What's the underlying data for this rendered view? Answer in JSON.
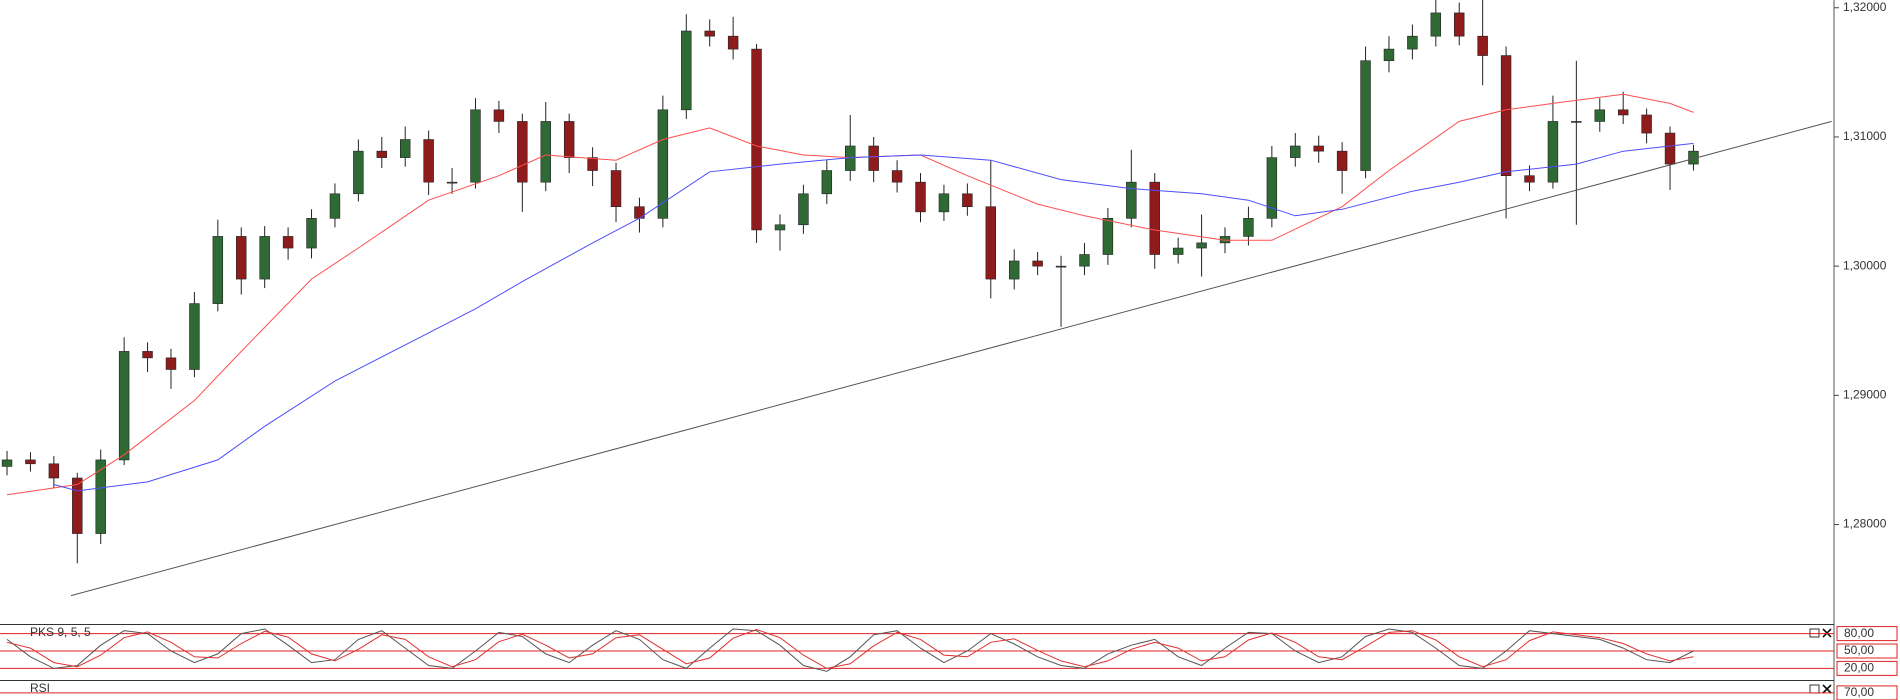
{
  "chart_data": [
    {
      "type": "candlestick",
      "xlim": [
        -0.3,
        78
      ],
      "ylim": [
        1.2723,
        1.3206
      ],
      "yticks": [
        {
          "value": 1.32,
          "label": "1,32000"
        },
        {
          "value": 1.31,
          "label": "1,31000"
        },
        {
          "value": 1.3,
          "label": "1,30000"
        },
        {
          "value": 1.29,
          "label": "1,29000"
        },
        {
          "value": 1.28,
          "label": "1,28000"
        }
      ],
      "up_color": "#2f6a35",
      "down_color": "#8e1c1c",
      "candles": [
        [
          1.2845,
          1.2857,
          1.2838,
          1.285
        ],
        [
          1.285,
          1.2856,
          1.2841,
          1.2847
        ],
        [
          1.2847,
          1.2853,
          1.2828,
          1.2836
        ],
        [
          1.2836,
          1.284,
          1.277,
          1.2793
        ],
        [
          1.2793,
          1.2858,
          1.2785,
          1.285
        ],
        [
          1.285,
          1.2945,
          1.2846,
          1.2934
        ],
        [
          1.2934,
          1.2941,
          1.2918,
          1.2929
        ],
        [
          1.2929,
          1.2936,
          1.2905,
          1.292
        ],
        [
          1.292,
          1.298,
          1.2914,
          1.2971
        ],
        [
          1.2971,
          1.3036,
          1.2965,
          1.3023
        ],
        [
          1.3023,
          1.303,
          1.2978,
          1.299
        ],
        [
          1.299,
          1.3031,
          1.2983,
          1.3023
        ],
        [
          1.3023,
          1.303,
          1.3005,
          1.3014
        ],
        [
          1.3014,
          1.3044,
          1.3006,
          1.3037
        ],
        [
          1.3037,
          1.3064,
          1.303,
          1.3056
        ],
        [
          1.3056,
          1.3098,
          1.305,
          1.3089
        ],
        [
          1.3089,
          1.31,
          1.3076,
          1.3084
        ],
        [
          1.3084,
          1.3108,
          1.3077,
          1.3098
        ],
        [
          1.3098,
          1.3105,
          1.3055,
          1.3065
        ],
        [
          1.3065,
          1.3076,
          1.3056,
          1.3065
        ],
        [
          1.3065,
          1.313,
          1.306,
          1.3121
        ],
        [
          1.3121,
          1.3128,
          1.3103,
          1.3112
        ],
        [
          1.3112,
          1.3118,
          1.3042,
          1.3065
        ],
        [
          1.3065,
          1.3127,
          1.3058,
          1.3112
        ],
        [
          1.3112,
          1.3118,
          1.3072,
          1.3084
        ],
        [
          1.3084,
          1.3092,
          1.3062,
          1.3074
        ],
        [
          1.3074,
          1.308,
          1.3034,
          1.3046
        ],
        [
          1.3046,
          1.3053,
          1.3026,
          1.3037
        ],
        [
          1.3037,
          1.3132,
          1.303,
          1.3121
        ],
        [
          1.3121,
          1.3195,
          1.3114,
          1.3182
        ],
        [
          1.3182,
          1.3191,
          1.317,
          1.3178
        ],
        [
          1.3178,
          1.3193,
          1.316,
          1.3168
        ],
        [
          1.3168,
          1.3172,
          1.3018,
          1.3028
        ],
        [
          1.3028,
          1.304,
          1.3012,
          1.3032
        ],
        [
          1.3032,
          1.3063,
          1.3025,
          1.3056
        ],
        [
          1.3056,
          1.3082,
          1.3048,
          1.3074
        ],
        [
          1.3074,
          1.3117,
          1.3066,
          1.3093
        ],
        [
          1.3093,
          1.31,
          1.3065,
          1.3074
        ],
        [
          1.3074,
          1.3082,
          1.3057,
          1.3065
        ],
        [
          1.3065,
          1.3072,
          1.3034,
          1.3042
        ],
        [
          1.3042,
          1.3063,
          1.3035,
          1.3056
        ],
        [
          1.3056,
          1.3064,
          1.3039,
          1.3046
        ],
        [
          1.3046,
          1.3082,
          1.2975,
          1.299
        ],
        [
          1.299,
          1.3013,
          1.2982,
          1.3004
        ],
        [
          1.3004,
          1.3011,
          1.2993,
          1.3
        ],
        [
          1.3,
          1.3008,
          1.2953,
          1.3
        ],
        [
          1.3,
          1.3018,
          1.2993,
          1.3009
        ],
        [
          1.3009,
          1.3045,
          1.3001,
          1.3037
        ],
        [
          1.3037,
          1.309,
          1.303,
          1.3065
        ],
        [
          1.3065,
          1.3072,
          1.2998,
          1.3009
        ],
        [
          1.3009,
          1.3022,
          1.3002,
          1.3014
        ],
        [
          1.3014,
          1.304,
          1.2992,
          1.3018
        ],
        [
          1.3018,
          1.303,
          1.301,
          1.3023
        ],
        [
          1.3023,
          1.3046,
          1.3016,
          1.3037
        ],
        [
          1.3037,
          1.3093,
          1.303,
          1.3084
        ],
        [
          1.3084,
          1.3103,
          1.3077,
          1.3093
        ],
        [
          1.3093,
          1.3101,
          1.308,
          1.3089
        ],
        [
          1.3089,
          1.3096,
          1.3056,
          1.3074
        ],
        [
          1.3074,
          1.317,
          1.3068,
          1.3159
        ],
        [
          1.3159,
          1.3178,
          1.315,
          1.3168
        ],
        [
          1.3168,
          1.3187,
          1.316,
          1.3178
        ],
        [
          1.3178,
          1.3206,
          1.317,
          1.3196
        ],
        [
          1.3196,
          1.3204,
          1.3171,
          1.3178
        ],
        [
          1.3178,
          1.3206,
          1.314,
          1.3163
        ],
        [
          1.3163,
          1.317,
          1.3037,
          1.307
        ],
        [
          1.307,
          1.3078,
          1.3058,
          1.3065
        ],
        [
          1.3065,
          1.3132,
          1.306,
          1.3112
        ],
        [
          1.3112,
          1.3159,
          1.3032,
          1.3112
        ],
        [
          1.3112,
          1.313,
          1.3104,
          1.3121
        ],
        [
          1.3121,
          1.3135,
          1.311,
          1.3117
        ],
        [
          1.3117,
          1.3122,
          1.3095,
          1.3103
        ],
        [
          1.3103,
          1.3108,
          1.3059,
          1.3079
        ],
        [
          1.3079,
          1.3094,
          1.3074,
          1.3089
        ]
      ],
      "overlays": [
        {
          "color": "#ff4d4d",
          "x": [
            0,
            3,
            5,
            8,
            10,
            13,
            15,
            18,
            21,
            23,
            26,
            28,
            30,
            32,
            34,
            36,
            39,
            41,
            44,
            46,
            49,
            52,
            54,
            57,
            59,
            62,
            64,
            66,
            69,
            71,
            72
          ],
          "values": [
            1.2823,
            1.2831,
            1.2854,
            1.2896,
            1.2934,
            1.299,
            1.3014,
            1.3051,
            1.307,
            1.3086,
            1.3082,
            1.3098,
            1.3107,
            1.3093,
            1.3086,
            1.3084,
            1.3086,
            1.307,
            1.3048,
            1.3039,
            1.3028,
            1.302,
            1.302,
            1.3046,
            1.3074,
            1.3112,
            1.3121,
            1.3126,
            1.3133,
            1.3126,
            1.3119
          ]
        },
        {
          "color": "#4d4dff",
          "x": [
            2,
            3,
            6,
            9,
            11,
            14,
            17,
            20,
            22,
            25,
            27,
            30,
            33,
            36,
            39,
            42,
            45,
            48,
            51,
            53,
            55,
            57,
            60,
            62,
            64,
            67,
            69,
            72
          ],
          "values": [
            1.2831,
            1.2826,
            1.2833,
            1.285,
            1.2876,
            1.2911,
            1.2939,
            1.2967,
            1.2988,
            1.3018,
            1.3037,
            1.3073,
            1.3079,
            1.3084,
            1.3086,
            1.3082,
            1.3067,
            1.306,
            1.3056,
            1.3051,
            1.3039,
            1.3044,
            1.3058,
            1.3065,
            1.3073,
            1.3079,
            1.3089,
            1.3095
          ]
        }
      ],
      "trendline": {
        "color": "#555555",
        "x": [
          2.73,
          77.9
        ],
        "values": [
          1.2745,
          1.3112
        ]
      }
    },
    {
      "type": "line",
      "title": "PKS 9, 5, 5",
      "xlim": [
        -0.3,
        78
      ],
      "ylim": [
        0,
        100
      ],
      "yticks": [
        {
          "value": 80,
          "label": "80,00"
        },
        {
          "value": 50,
          "label": "50,00"
        },
        {
          "value": 20,
          "label": "20,00"
        }
      ],
      "level_color": "#e02020",
      "series": [
        {
          "color": "#555555",
          "values": [
            70,
            40,
            20,
            25,
            60,
            85,
            80,
            50,
            30,
            45,
            80,
            88,
            60,
            30,
            35,
            70,
            85,
            55,
            25,
            20,
            50,
            82,
            75,
            45,
            30,
            60,
            85,
            70,
            35,
            20,
            55,
            88,
            85,
            60,
            25,
            15,
            40,
            78,
            85,
            55,
            30,
            50,
            80,
            62,
            40,
            25,
            20,
            45,
            60,
            70,
            40,
            25,
            55,
            82,
            80,
            50,
            30,
            40,
            75,
            88,
            82,
            55,
            25,
            20,
            50,
            85,
            80,
            75,
            70,
            55,
            35,
            30,
            50
          ]
        },
        {
          "color": "#e03030",
          "values": [
            65,
            55,
            30,
            23,
            43,
            73,
            83,
            65,
            40,
            38,
            63,
            84,
            74,
            45,
            33,
            53,
            78,
            70,
            40,
            23,
            35,
            66,
            79,
            60,
            38,
            45,
            73,
            78,
            53,
            28,
            38,
            72,
            87,
            73,
            43,
            20,
            28,
            59,
            82,
            70,
            43,
            40,
            65,
            71,
            51,
            33,
            23,
            33,
            53,
            65,
            55,
            33,
            40,
            69,
            81,
            65,
            40,
            35,
            58,
            82,
            85,
            69,
            40,
            23,
            35,
            68,
            83,
            78,
            73,
            63,
            45,
            33,
            40
          ]
        }
      ]
    },
    {
      "type": "line",
      "title": "RSI",
      "xlim": [
        -0.3,
        78
      ],
      "ylim": [
        0,
        100
      ],
      "yticks": [
        {
          "value": 70,
          "label": "70,00"
        }
      ],
      "level_color": "#e02020"
    }
  ]
}
